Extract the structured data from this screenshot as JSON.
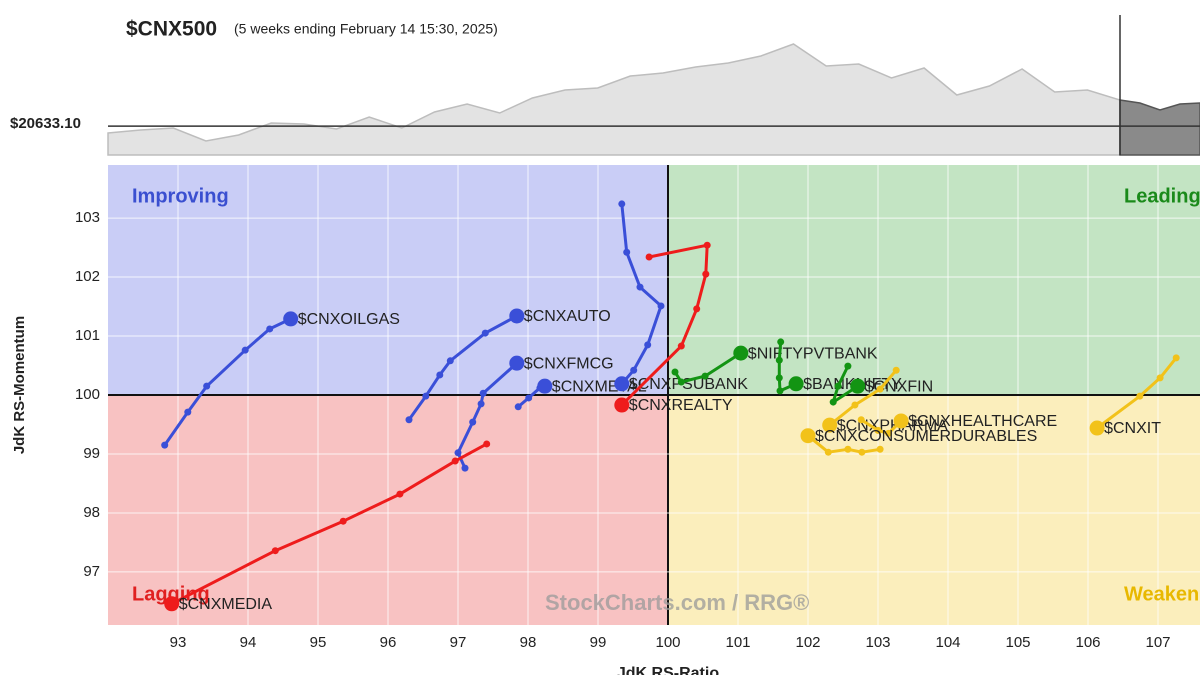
{
  "chart_data": [
    {
      "type": "area",
      "title": "$CNX500",
      "subtitle": "(5 weeks ending February 14 15:30, 2025)",
      "ylim": [
        20220,
        22220
      ],
      "reference": {
        "value": 20633.1,
        "label": "$20633.10"
      },
      "series": [
        {
          "color": "#bdbdbd",
          "values": [
            20534,
            20577,
            20606,
            20420,
            20506,
            20677,
            20663,
            20591,
            20763,
            20606,
            20834,
            20949,
            20820,
            21034,
            21149,
            21177,
            21349,
            21391,
            21477,
            21534,
            21634,
            21806,
            21491,
            21520,
            21320,
            21463,
            21077,
            21206,
            21449,
            21120,
            21149,
            21006
          ]
        },
        {
          "color": "#555555",
          "values": [
            21006,
            20963,
            20863,
            20949,
            20963
          ]
        }
      ]
    },
    {
      "type": "rrg",
      "x_label": "JdK RS-Ratio",
      "y_label": "JdK RS-Momentum",
      "xlim": [
        92,
        107.6
      ],
      "ylim": [
        96.1,
        103.9
      ],
      "xticks": [
        93,
        94,
        95,
        96,
        97,
        98,
        99,
        100,
        101,
        102,
        103,
        104,
        105,
        106,
        107
      ],
      "yticks": [
        97,
        98,
        99,
        100,
        101,
        102,
        103
      ],
      "center": [
        100,
        100
      ],
      "quadrants": [
        {
          "label": "Improving",
          "color": "#3a4fd0",
          "fill": "#c9cdf6"
        },
        {
          "label": "Leading",
          "color": "#1a8a1a",
          "fill": "#c3e4c3"
        },
        {
          "label": "Lagging",
          "color": "#e02020",
          "fill": "#f8c2c2"
        },
        {
          "label": "Weakening",
          "color": "#e8b800",
          "fill": "#fbeebc"
        }
      ],
      "watermark": "StockCharts.com / RRG®",
      "series": [
        {
          "name": "$CNXOILGAS",
          "color": "#3a4fd8",
          "x": [
            92.81,
            93.14,
            93.41,
            93.96,
            94.31,
            94.61
          ],
          "y": [
            99.15,
            99.71,
            100.15,
            100.76,
            101.12,
            101.29
          ]
        },
        {
          "name": "$CNXAUTO",
          "color": "#3a4fd8",
          "x": [
            96.3,
            96.54,
            96.74,
            96.89,
            97.39,
            97.84
          ],
          "y": [
            99.58,
            99.98,
            100.34,
            100.58,
            101.05,
            101.34
          ]
        },
        {
          "name": "$CNXFMCG",
          "color": "#3a4fd8",
          "x": [
            97.1,
            97.0,
            97.21,
            97.33,
            97.36,
            97.84
          ],
          "y": [
            98.76,
            99.02,
            99.54,
            99.85,
            100.03,
            100.54
          ]
        },
        {
          "name": "$CNXMETAL",
          "color": "#3a4fd8",
          "x": [
            97.86,
            98.01,
            98.17,
            98.24
          ],
          "y": [
            99.8,
            99.95,
            100.12,
            100.15
          ]
        },
        {
          "name": "$CNXPSUBANK",
          "color": "#3a4fd8",
          "x": [
            99.34,
            99.41,
            99.6,
            99.9,
            99.71,
            99.51,
            99.34
          ],
          "y": [
            103.24,
            102.42,
            101.83,
            101.51,
            100.85,
            100.42,
            100.19
          ]
        },
        {
          "name": "$CNXREALTY",
          "color": "#ee1c1c",
          "x": [
            99.73,
            100.56,
            100.54,
            100.41,
            100.19,
            99.34
          ],
          "y": [
            102.34,
            102.54,
            102.05,
            101.46,
            100.83,
            99.83
          ]
        },
        {
          "name": "$CNXMEDIA",
          "color": "#ee1c1c",
          "x": [
            97.41,
            96.96,
            96.17,
            95.36,
            94.39,
            92.91
          ],
          "y": [
            99.17,
            98.88,
            98.32,
            97.86,
            97.36,
            96.46
          ]
        },
        {
          "name": "$NIFTYPVTBANK",
          "color": "#139413",
          "x": [
            100.1,
            100.19,
            100.53,
            101.04
          ],
          "y": [
            100.39,
            100.22,
            100.32,
            100.71
          ]
        },
        {
          "name": "$BANKNIFTY",
          "color": "#139413",
          "x": [
            101.61,
            101.59,
            101.59,
            101.6,
            101.83
          ],
          "y": [
            100.9,
            100.59,
            100.29,
            100.07,
            100.19
          ]
        },
        {
          "name": "$CNXFIN",
          "color": "#139413",
          "x": [
            102.57,
            102.43,
            102.36,
            102.71
          ],
          "y": [
            100.49,
            100.15,
            99.88,
            100.15
          ]
        },
        {
          "name": "$CNXIT",
          "color": "#f2c21a",
          "x": [
            107.26,
            107.03,
            106.74,
            106.13
          ],
          "y": [
            100.63,
            100.29,
            99.98,
            99.44
          ]
        },
        {
          "name": "$CNXPHARMA",
          "color": "#f2c21a",
          "x": [
            103.26,
            103.03,
            102.67,
            102.31
          ],
          "y": [
            100.42,
            100.1,
            99.83,
            99.49
          ]
        },
        {
          "name": "$CNXHEALTHCARE",
          "color": "#f2c21a",
          "x": [
            102.76,
            103.0,
            103.15,
            103.33
          ],
          "y": [
            99.58,
            99.4,
            99.35,
            99.56
          ]
        },
        {
          "name": "$CNXCONSUMERDURABLES",
          "color": "#f2c21a",
          "x": [
            103.03,
            102.77,
            102.57,
            102.29,
            102.0
          ],
          "y": [
            99.08,
            99.03,
            99.08,
            99.03,
            99.31
          ]
        }
      ]
    }
  ]
}
